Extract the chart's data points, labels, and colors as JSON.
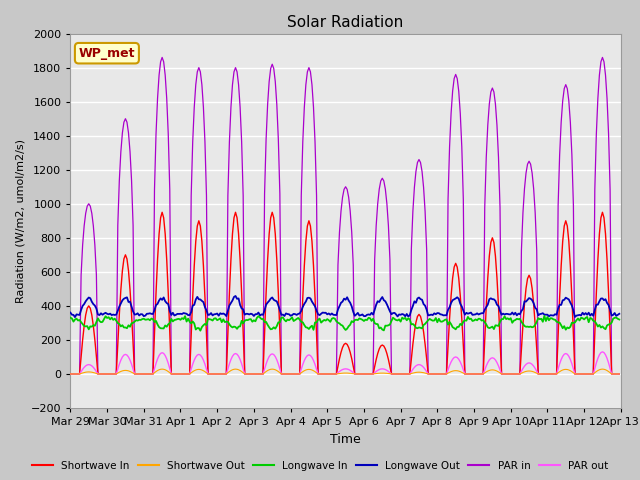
{
  "title": "Solar Radiation",
  "ylabel": "Radiation (W/m2, umol/m2/s)",
  "xlabel": "Time",
  "ylim": [
    -200,
    2000
  ],
  "xlim": [
    0,
    336
  ],
  "fig_facecolor": "#c8c8c8",
  "plot_bg_color": "#e8e8e8",
  "grid_color": "#ffffff",
  "series": {
    "shortwave_in": {
      "color": "#ff0000",
      "label": "Shortwave In"
    },
    "shortwave_out": {
      "color": "#ffa500",
      "label": "Shortwave Out"
    },
    "longwave_in": {
      "color": "#00cc00",
      "label": "Longwave In"
    },
    "longwave_out": {
      "color": "#0000bb",
      "label": "Longwave Out"
    },
    "par_in": {
      "color": "#aa00cc",
      "label": "PAR in"
    },
    "par_out": {
      "color": "#ff55ff",
      "label": "PAR out"
    }
  },
  "xtick_labels": [
    "Mar 29",
    "Mar 30",
    "Mar 31",
    "Apr 1",
    "Apr 2",
    "Apr 3",
    "Apr 4",
    "Apr 5",
    "Apr 6",
    "Apr 7",
    "Apr 8",
    "Apr 9",
    "Apr 10",
    "Apr 11",
    "Apr 12",
    "Apr 13"
  ],
  "xtick_positions": [
    0,
    24,
    48,
    72,
    96,
    120,
    144,
    168,
    192,
    216,
    240,
    264,
    288,
    312,
    336,
    360
  ],
  "legend_box": {
    "label": "WP_met",
    "facecolor": "#ffffcc",
    "edgecolor": "#cc9900",
    "textcolor": "#990000"
  },
  "n_days": 15
}
